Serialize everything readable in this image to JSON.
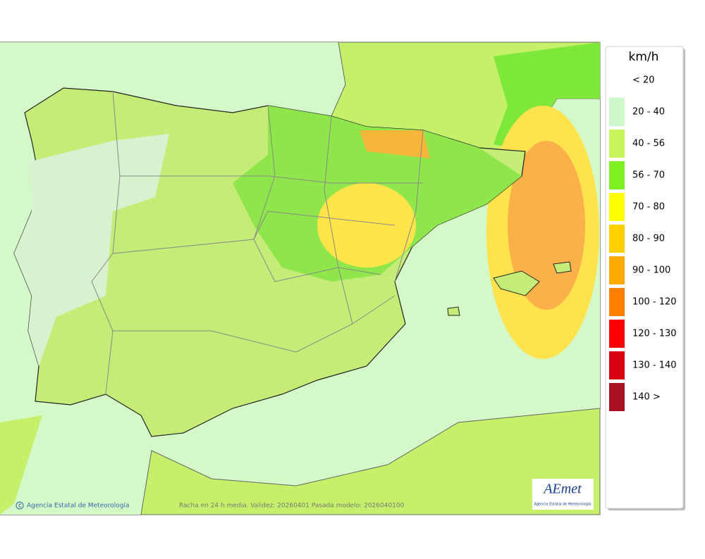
{
  "legend": {
    "title": "km/h",
    "entries": [
      {
        "label": "< 20",
        "color": null
      },
      {
        "label": "20 - 40",
        "color": "#ccf8cc"
      },
      {
        "label": "40 - 56",
        "color": "#c6f55a"
      },
      {
        "label": "56 - 70",
        "color": "#7cf020"
      },
      {
        "label": "70 - 80",
        "color": "#ffff00"
      },
      {
        "label": "80 - 90",
        "color": "#ffd000"
      },
      {
        "label": "90 - 100",
        "color": "#ffaa00"
      },
      {
        "label": "100 - 120",
        "color": "#ff8000"
      },
      {
        "label": "120 - 130",
        "color": "#ff0000"
      },
      {
        "label": "130 - 140",
        "color": "#d80010"
      },
      {
        "label": "140 >",
        "color": "#a81020"
      }
    ]
  },
  "footer": {
    "credit": "Agencia Estatal de Meteorología",
    "caption": "Racha en 24 h media. Validez: 20260401 Pasada modelo: 2026040100"
  },
  "logo": {
    "name": "AEmet",
    "subtitle": "Agencia Estatal de Meteorología"
  }
}
